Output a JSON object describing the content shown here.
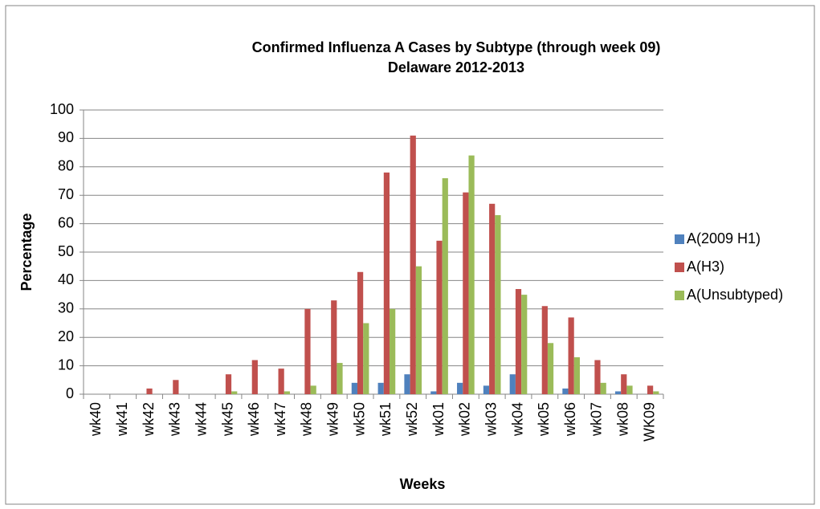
{
  "chart_data": {
    "type": "bar",
    "title": "Confirmed Influenza A Cases by Subtype (through week 09)",
    "subtitle": "Delaware 2012-2013",
    "x_label": "Weeks",
    "y_label": "Percentage",
    "categories": [
      "wk40",
      "wk41",
      "wk42",
      "wk43",
      "wk44",
      "wk45",
      "wk46",
      "wk47",
      "wk48",
      "wk49",
      "wk50",
      "wk51",
      "wk52",
      "wk01",
      "wk02",
      "wk03",
      "wk04",
      "wk05",
      "wk06",
      "wk07",
      "wk08",
      "WK09"
    ],
    "series": [
      {
        "name": "A(2009 H1)",
        "color": "#4f81bd",
        "values": [
          0,
          0,
          0,
          0,
          0,
          0,
          0,
          0,
          0,
          0,
          4,
          4,
          7,
          1,
          4,
          3,
          7,
          0,
          2,
          0,
          1,
          0
        ]
      },
      {
        "name": "A(H3)",
        "color": "#c0504d",
        "values": [
          0,
          0,
          2,
          5,
          0,
          7,
          12,
          9,
          30,
          33,
          43,
          78,
          91,
          54,
          71,
          67,
          37,
          31,
          27,
          12,
          7,
          3
        ]
      },
      {
        "name": "A(Unsubtyped)",
        "color": "#9bbb59",
        "values": [
          0,
          0,
          0,
          0,
          0,
          1,
          0,
          1,
          3,
          11,
          25,
          30,
          45,
          76,
          84,
          63,
          35,
          18,
          13,
          4,
          3,
          1
        ]
      }
    ],
    "ylim": [
      0,
      100
    ],
    "yticks": [
      0,
      10,
      20,
      30,
      40,
      50,
      60,
      70,
      80,
      90,
      100
    ],
    "grid": true,
    "legend": "right"
  }
}
